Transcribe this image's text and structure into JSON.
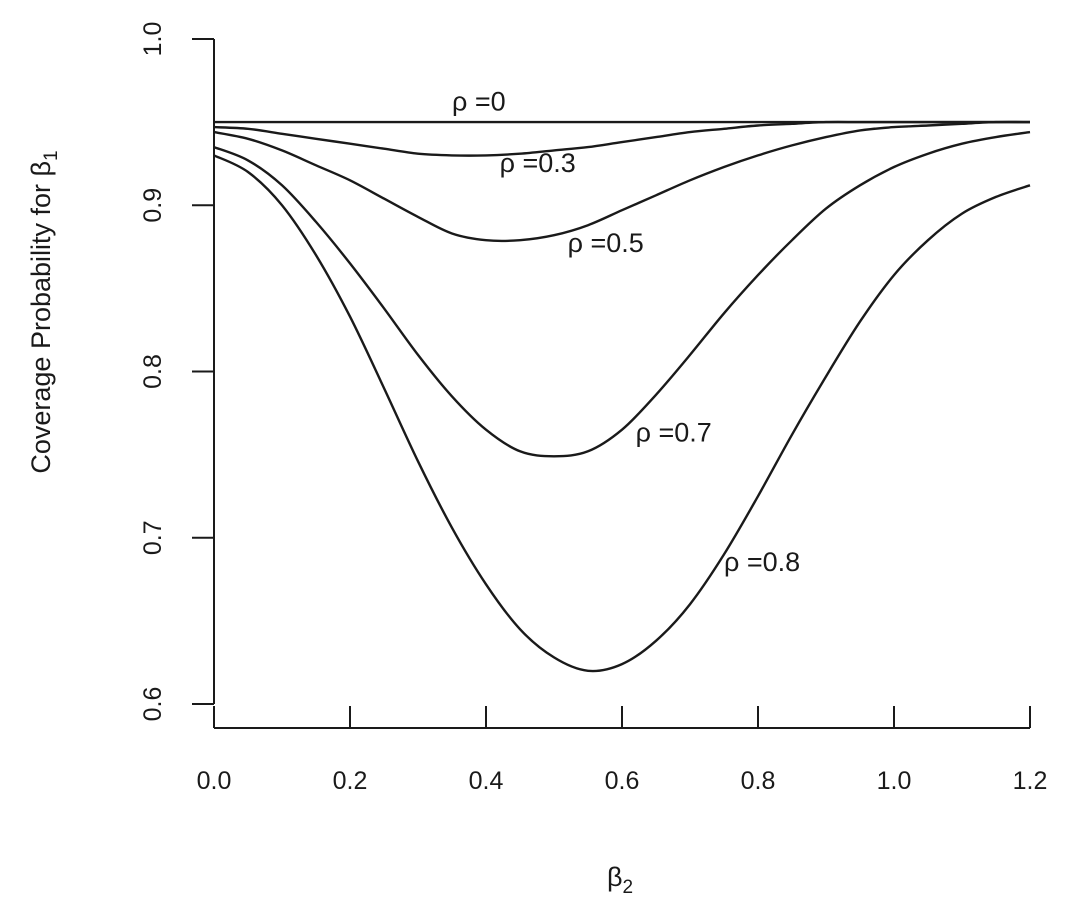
{
  "chart_data": {
    "type": "line",
    "xlabel": "β",
    "xlabel_sub": "2",
    "ylabel": "Coverage Probability for  β",
    "ylabel_sub": "1",
    "xlim": [
      0.0,
      1.2
    ],
    "ylim": [
      0.6,
      1.0
    ],
    "x_ticks": [
      "0.0",
      "0.2",
      "0.4",
      "0.6",
      "0.8",
      "1.0",
      "1.2"
    ],
    "y_ticks": [
      "0.6",
      "0.7",
      "0.8",
      "0.9",
      "1.0"
    ],
    "grid": false,
    "legend": "none (inline labels)",
    "x": [
      0.0,
      0.05,
      0.1,
      0.15,
      0.2,
      0.25,
      0.3,
      0.35,
      0.4,
      0.45,
      0.5,
      0.55,
      0.6,
      0.65,
      0.7,
      0.75,
      0.8,
      0.85,
      0.9,
      0.95,
      1.0,
      1.05,
      1.1,
      1.15,
      1.2
    ],
    "series": [
      {
        "name": "ρ =0",
        "values": [
          0.95,
          0.95,
          0.95,
          0.95,
          0.95,
          0.95,
          0.95,
          0.95,
          0.95,
          0.95,
          0.95,
          0.95,
          0.95,
          0.95,
          0.95,
          0.95,
          0.95,
          0.95,
          0.95,
          0.95,
          0.95,
          0.95,
          0.95,
          0.95,
          0.95
        ]
      },
      {
        "name": "ρ =0.3",
        "values": [
          0.947,
          0.946,
          0.943,
          0.94,
          0.937,
          0.934,
          0.931,
          0.93,
          0.93,
          0.931,
          0.933,
          0.935,
          0.938,
          0.941,
          0.944,
          0.946,
          0.948,
          0.949,
          0.95,
          0.95,
          0.95,
          0.95,
          0.95,
          0.95,
          0.95
        ]
      },
      {
        "name": "ρ =0.5",
        "values": [
          0.944,
          0.94,
          0.933,
          0.924,
          0.915,
          0.904,
          0.893,
          0.883,
          0.879,
          0.879,
          0.882,
          0.888,
          0.897,
          0.906,
          0.915,
          0.923,
          0.93,
          0.936,
          0.941,
          0.945,
          0.947,
          0.948,
          0.949,
          0.95,
          0.95
        ]
      },
      {
        "name": "ρ =0.7",
        "values": [
          0.935,
          0.927,
          0.912,
          0.89,
          0.865,
          0.838,
          0.81,
          0.785,
          0.765,
          0.752,
          0.749,
          0.752,
          0.765,
          0.786,
          0.81,
          0.835,
          0.858,
          0.879,
          0.898,
          0.912,
          0.923,
          0.931,
          0.937,
          0.941,
          0.944
        ]
      },
      {
        "name": "ρ =0.8",
        "values": [
          0.93,
          0.92,
          0.9,
          0.87,
          0.833,
          0.79,
          0.746,
          0.706,
          0.672,
          0.645,
          0.628,
          0.62,
          0.624,
          0.638,
          0.66,
          0.69,
          0.725,
          0.762,
          0.797,
          0.83,
          0.858,
          0.879,
          0.895,
          0.905,
          0.912
        ]
      }
    ],
    "label_positions": [
      {
        "series": 0,
        "x": 0.35,
        "y": 0.957
      },
      {
        "series": 1,
        "x": 0.42,
        "y": 0.92
      },
      {
        "series": 2,
        "x": 0.52,
        "y": 0.872
      },
      {
        "series": 3,
        "x": 0.62,
        "y": 0.758
      },
      {
        "series": 4,
        "x": 0.75,
        "y": 0.68
      }
    ]
  }
}
